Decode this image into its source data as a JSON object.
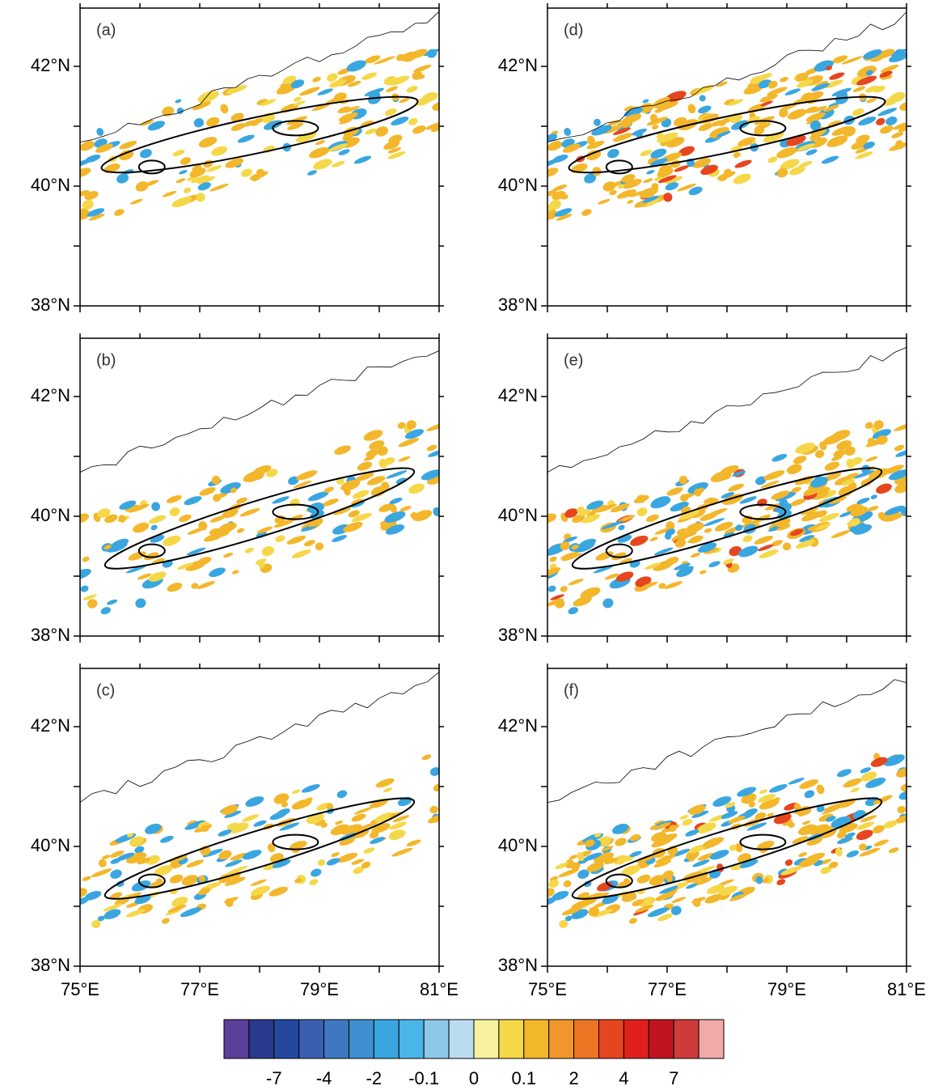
{
  "panels": [
    {
      "label": "(a)"
    },
    {
      "label": "(b)"
    },
    {
      "label": "(c)"
    },
    {
      "label": "(d)"
    },
    {
      "label": "(e)"
    },
    {
      "label": "(f)"
    }
  ],
  "lat_ticks": [
    "42°N",
    "40°N",
    "38°N"
  ],
  "lon_ticks": [
    "75°E",
    "77°E",
    "79°E",
    "81°E"
  ],
  "colorbar": {
    "colors": [
      "#5b3f99",
      "#2a3a8c",
      "#24489e",
      "#3b5fb0",
      "#3f78c1",
      "#3f8fd0",
      "#3aa6e0",
      "#4ab5e8",
      "#8ec8e8",
      "#b9dcef",
      "#f8f2a0",
      "#f5d84a",
      "#f3b72c",
      "#f0962a",
      "#ec7524",
      "#e6461f",
      "#e01f1c",
      "#c0151f",
      "#cf3b3b",
      "#f2a9a9"
    ],
    "labels": [
      "-7",
      "-4",
      "-2",
      "-0.1",
      "0",
      "0.1",
      "2",
      "4",
      "7"
    ]
  }
}
